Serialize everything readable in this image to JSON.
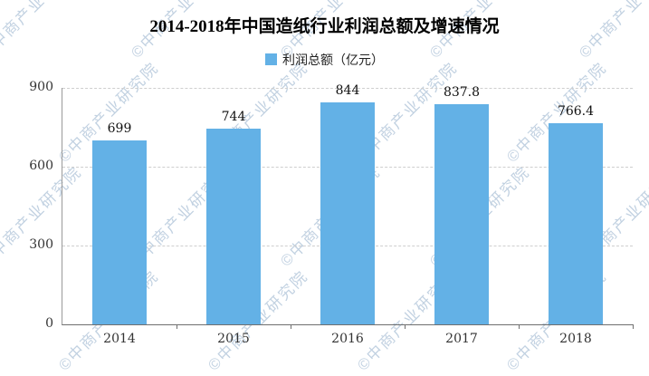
{
  "title": "2014-2018年中国造纸行业利润总额及增速情况",
  "legend": {
    "label": "利润总额（亿元）"
  },
  "watermark": {
    "text": "©中商产业研究院",
    "color": "#b7c9dc"
  },
  "chart_data": {
    "type": "bar",
    "title": "2014-2018年中国造纸行业利润总额及增速情况",
    "categories": [
      "2014",
      "2015",
      "2016",
      "2017",
      "2018"
    ],
    "values": [
      699,
      744,
      844,
      837.8,
      766.4
    ],
    "value_labels": [
      "699",
      "744",
      "844",
      "837.8",
      "766.4"
    ],
    "series_name": "利润总额（亿元）",
    "xlabel": "",
    "ylabel": "",
    "ylim": [
      0,
      900
    ],
    "yticks": [
      0,
      300,
      600,
      900
    ],
    "bar_color": "#63b1e6",
    "grid": "horizontal-dashed",
    "legend_position": "top-center"
  }
}
